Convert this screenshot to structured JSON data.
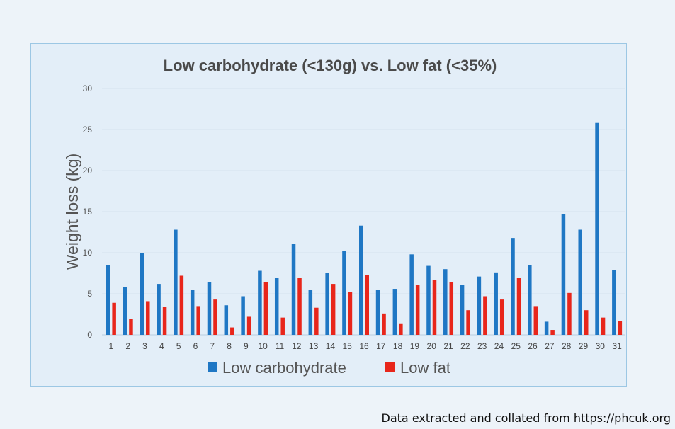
{
  "chart_data": {
    "type": "bar",
    "title": "Low carbohydrate (<130g) vs. Low fat (<35%)",
    "xlabel": "",
    "ylabel": "Weight loss (kg)",
    "ylim": [
      0,
      30
    ],
    "yticks": [
      0,
      5,
      10,
      15,
      20,
      25,
      30
    ],
    "categories": [
      "1",
      "2",
      "3",
      "4",
      "5",
      "6",
      "7",
      "8",
      "9",
      "10",
      "11",
      "12",
      "13",
      "14",
      "15",
      "16",
      "17",
      "18",
      "19",
      "20",
      "21",
      "22",
      "23",
      "24",
      "25",
      "26",
      "27",
      "28",
      "29",
      "30",
      "31"
    ],
    "series": [
      {
        "name": "Low carbohydrate",
        "color": "#1f77c4",
        "values": [
          8.5,
          5.8,
          10.0,
          6.2,
          12.8,
          5.5,
          6.4,
          3.6,
          4.7,
          7.8,
          6.9,
          11.1,
          5.5,
          7.5,
          10.2,
          13.3,
          5.5,
          5.6,
          9.8,
          8.4,
          8.0,
          6.1,
          7.1,
          7.6,
          11.8,
          8.5,
          1.6,
          14.7,
          12.8,
          25.8,
          7.9
        ]
      },
      {
        "name": "Low fat",
        "color": "#e8261b",
        "values": [
          3.9,
          1.9,
          4.1,
          3.4,
          7.2,
          3.5,
          4.3,
          0.9,
          2.2,
          6.4,
          2.1,
          6.9,
          3.3,
          6.2,
          5.2,
          7.3,
          2.6,
          1.4,
          6.1,
          6.7,
          6.4,
          3.0,
          4.7,
          4.3,
          6.9,
          3.5,
          0.6,
          5.1,
          3.0,
          2.1,
          1.7
        ]
      }
    ],
    "legend_position": "bottom",
    "grid": true
  },
  "footer": {
    "source_text": "Data extracted and collated from https://phcuk.org"
  }
}
